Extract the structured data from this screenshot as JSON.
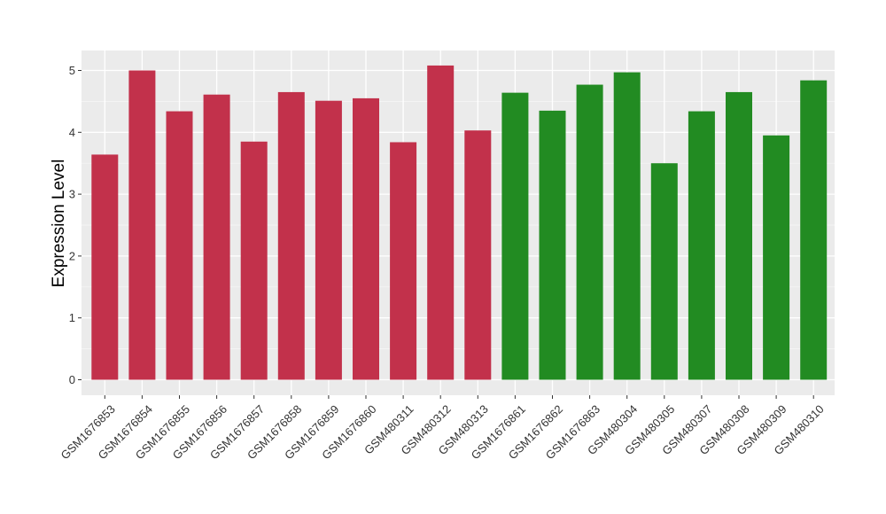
{
  "chart_data": {
    "type": "bar",
    "title": "",
    "xlabel": "",
    "ylabel": "Expression Level",
    "ylim": [
      0,
      5
    ],
    "yticks": [
      0,
      1,
      2,
      3,
      4,
      5
    ],
    "grid": true,
    "legend": "none",
    "categories": [
      "GSM1676853",
      "GSM1676854",
      "GSM1676855",
      "GSM1676856",
      "GSM1676857",
      "GSM1676858",
      "GSM1676859",
      "GSM1676860",
      "GSM480311",
      "GSM480312",
      "GSM480313",
      "GSM1676861",
      "GSM1676862",
      "GSM1676863",
      "GSM480304",
      "GSM480305",
      "GSM480307",
      "GSM480308",
      "GSM480309",
      "GSM480310"
    ],
    "values": [
      3.64,
      5.0,
      4.34,
      4.61,
      3.85,
      4.65,
      4.51,
      4.55,
      3.84,
      5.08,
      4.03,
      4.64,
      4.35,
      4.77,
      4.97,
      3.5,
      4.34,
      4.65,
      3.95,
      4.84
    ],
    "bar_colors": [
      "#c2314b",
      "#c2314b",
      "#c2314b",
      "#c2314b",
      "#c2314b",
      "#c2314b",
      "#c2314b",
      "#c2314b",
      "#c2314b",
      "#c2314b",
      "#c2314b",
      "#228b22",
      "#228b22",
      "#228b22",
      "#228b22",
      "#228b22",
      "#228b22",
      "#228b22",
      "#228b22",
      "#228b22"
    ],
    "colors": {
      "group1": "#c2314b",
      "group2": "#228b22",
      "panel": "#ebebeb",
      "grid": "#ffffff"
    }
  }
}
